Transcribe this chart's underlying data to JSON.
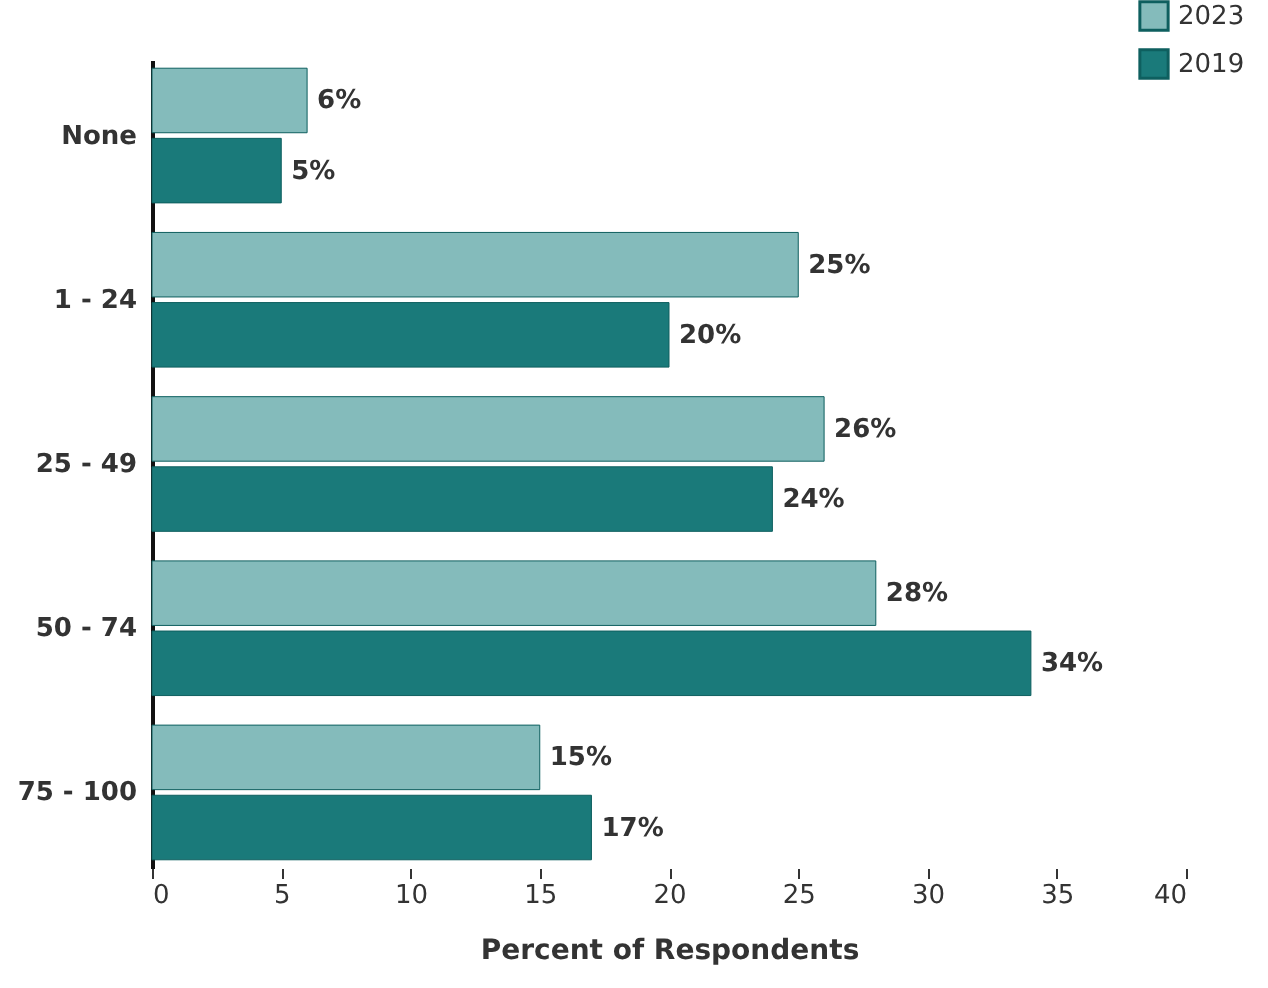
{
  "chart_data": {
    "type": "bar",
    "orientation": "horizontal",
    "xlabel": "Percent of Respondents",
    "categories": [
      "None",
      "1 - 24",
      "25 - 49",
      "50 - 74",
      "75 - 100"
    ],
    "series": [
      {
        "name": "2023",
        "color": "#84bbbb",
        "values": [
          6,
          25,
          26,
          28,
          15
        ],
        "value_labels": [
          "6%",
          "25%",
          "26%",
          "28%",
          "15%"
        ]
      },
      {
        "name": "2019",
        "color": "#1a7a7a",
        "values": [
          5,
          20,
          24,
          34,
          17
        ],
        "value_labels": [
          "5%",
          "20%",
          "24%",
          "34%",
          "17%"
        ]
      }
    ],
    "xlim": [
      0,
      40
    ],
    "xticks": [
      0,
      5,
      10,
      15,
      20,
      25,
      30,
      35,
      40
    ],
    "grid": false,
    "legend": "top right"
  }
}
